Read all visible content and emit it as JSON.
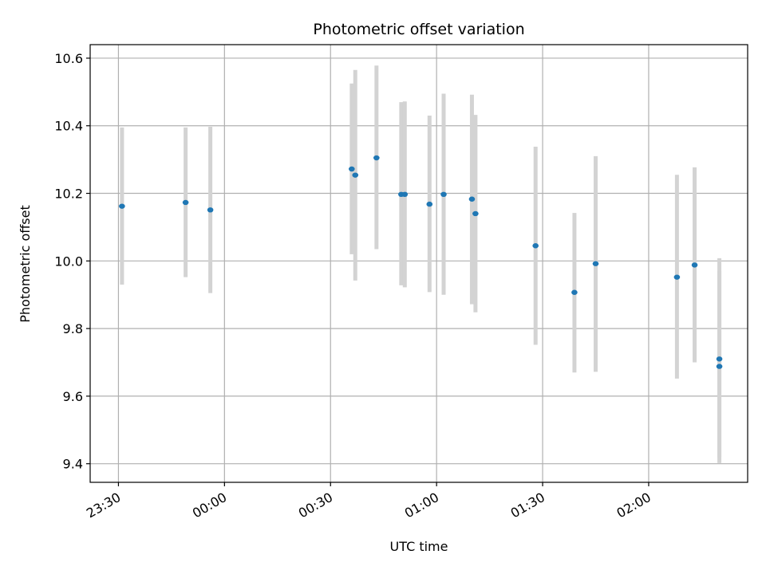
{
  "chart_data": {
    "type": "scatter",
    "title": "Photometric offset variation",
    "xlabel": "UTC time",
    "ylabel": "Photometric offset",
    "xlim": [
      "23:22",
      "02:28"
    ],
    "ylim": [
      9.345,
      10.64
    ],
    "grid": true,
    "x_ticks": [
      "23:30",
      "00:00",
      "00:30",
      "01:00",
      "01:30",
      "02:00"
    ],
    "y_ticks": [
      "9.4",
      "9.6",
      "9.8",
      "10.0",
      "10.2",
      "10.4",
      "10.6"
    ],
    "colors": {
      "point": "#1f77b4",
      "errorbar": "#d3d3d3",
      "grid": "#b0b0b0"
    },
    "series": [
      {
        "points": [
          {
            "x": "23:31",
            "y": 10.162,
            "ylo": 9.93,
            "yhi": 10.395
          },
          {
            "x": "23:49",
            "y": 10.173,
            "ylo": 9.952,
            "yhi": 10.395
          },
          {
            "x": "23:56",
            "y": 10.151,
            "ylo": 9.905,
            "yhi": 10.397
          },
          {
            "x": "00:36",
            "y": 10.272,
            "ylo": 10.02,
            "yhi": 10.525
          },
          {
            "x": "00:37",
            "y": 10.254,
            "ylo": 9.942,
            "yhi": 10.565
          },
          {
            "x": "00:43",
            "y": 10.305,
            "ylo": 10.035,
            "yhi": 10.578
          },
          {
            "x": "00:50",
            "y": 10.197,
            "ylo": 9.928,
            "yhi": 10.47
          },
          {
            "x": "00:51",
            "y": 10.197,
            "ylo": 9.922,
            "yhi": 10.472
          },
          {
            "x": "00:58",
            "y": 10.168,
            "ylo": 9.908,
            "yhi": 10.43
          },
          {
            "x": "01:02",
            "y": 10.197,
            "ylo": 9.9,
            "yhi": 10.495
          },
          {
            "x": "01:10",
            "y": 10.183,
            "ylo": 9.872,
            "yhi": 10.492
          },
          {
            "x": "01:11",
            "y": 10.14,
            "ylo": 9.848,
            "yhi": 10.432
          },
          {
            "x": "01:28",
            "y": 10.045,
            "ylo": 9.752,
            "yhi": 10.338
          },
          {
            "x": "01:39",
            "y": 9.907,
            "ylo": 9.67,
            "yhi": 10.142
          },
          {
            "x": "01:45",
            "y": 9.992,
            "ylo": 9.672,
            "yhi": 10.31
          },
          {
            "x": "02:08",
            "y": 9.952,
            "ylo": 9.652,
            "yhi": 10.255
          },
          {
            "x": "02:13",
            "y": 9.988,
            "ylo": 9.7,
            "yhi": 10.277
          },
          {
            "x": "02:20",
            "y": 9.71,
            "ylo": 9.42,
            "yhi": 10.008
          },
          {
            "x": "02:20",
            "y": 9.688,
            "ylo": 9.402,
            "yhi": 9.97
          }
        ]
      }
    ]
  }
}
